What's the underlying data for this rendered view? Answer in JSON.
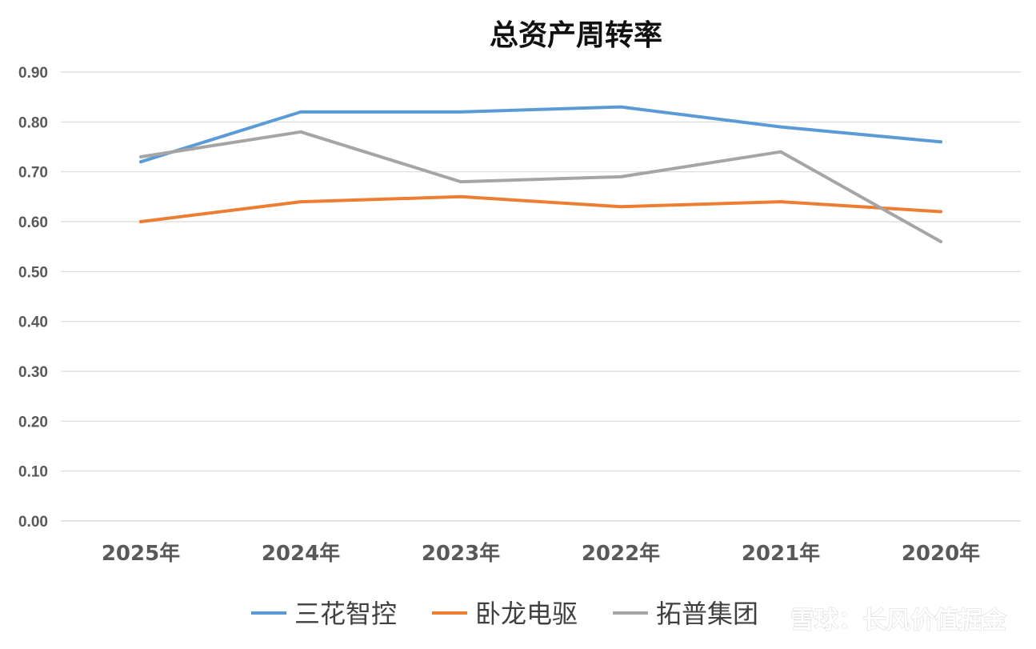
{
  "watermark": "雪球：长风价值掘金",
  "chart_data": {
    "type": "line",
    "title": "总资产周转率",
    "xlabel": "",
    "ylabel": "",
    "ylim": [
      0,
      0.9
    ],
    "yticks": [
      "0.00",
      "0.10",
      "0.20",
      "0.30",
      "0.40",
      "0.50",
      "0.60",
      "0.70",
      "0.80",
      "0.90"
    ],
    "grid": true,
    "legend_position": "bottom",
    "categories": [
      "2025年",
      "2024年",
      "2023年",
      "2022年",
      "2021年",
      "2020年"
    ],
    "series": [
      {
        "name": "三花智控",
        "color": "#5B9BD5",
        "values": [
          0.72,
          0.82,
          0.82,
          0.83,
          0.79,
          0.76
        ]
      },
      {
        "name": "卧龙电驱",
        "color": "#ED7D31",
        "values": [
          0.6,
          0.64,
          0.65,
          0.63,
          0.64,
          0.62
        ]
      },
      {
        "name": "拓普集团",
        "color": "#A5A5A5",
        "values": [
          0.73,
          0.78,
          0.68,
          0.69,
          0.74,
          0.56
        ]
      }
    ]
  }
}
